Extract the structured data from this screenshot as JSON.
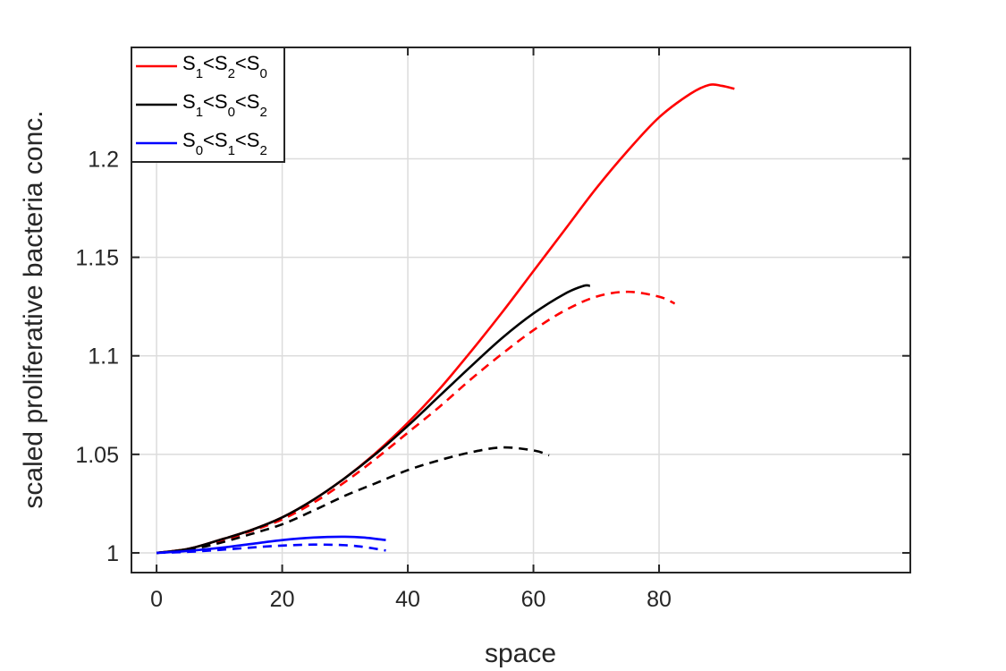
{
  "chart_data": {
    "type": "line",
    "title": "",
    "xlabel": "space",
    "ylabel": "scaled proliferative bacteria conc.",
    "xlim": [
      -4,
      120
    ],
    "ylim": [
      0.99,
      1.2565
    ],
    "xticks": [
      0,
      20,
      40,
      60,
      80
    ],
    "xtick_labels": [
      "0",
      "20",
      "40",
      "60",
      "80"
    ],
    "yticks": [
      1,
      1.05,
      1.1,
      1.15,
      1.2
    ],
    "ytick_labels": [
      "1",
      "1.05",
      "1.1",
      "1.15",
      "1.2"
    ],
    "grid": true,
    "legend_position": "top-left",
    "legend": [
      {
        "color": "#ff0000",
        "parts": [
          "S",
          "1",
          "<S",
          "2",
          "<S",
          "0"
        ],
        "label": "S1<S2<S0"
      },
      {
        "color": "#000000",
        "parts": [
          "S",
          "1",
          "<S",
          "0",
          "<S",
          "2"
        ],
        "label": "S1<S0<S2"
      },
      {
        "color": "#0000ff",
        "parts": [
          "S",
          "0",
          "<S",
          "1",
          "<S",
          "2"
        ],
        "label": "S0<S1<S2"
      }
    ],
    "series": [
      {
        "name": "S1<S2<S0 solid",
        "color": "#ff0000",
        "style": "solid",
        "x": [
          0,
          5,
          10,
          15,
          20,
          25,
          30,
          35,
          40,
          45,
          50,
          55,
          60,
          65,
          70,
          75,
          80,
          85,
          88,
          90,
          92
        ],
        "y": [
          1.0,
          1.002,
          1.0065,
          1.0115,
          1.018,
          1.027,
          1.038,
          1.051,
          1.066,
          1.083,
          1.102,
          1.122,
          1.143,
          1.164,
          1.185,
          1.204,
          1.221,
          1.233,
          1.2375,
          1.237,
          1.2355
        ]
      },
      {
        "name": "S1<S2<S0 dashed",
        "color": "#ff0000",
        "style": "dashed",
        "x": [
          0,
          5,
          10,
          15,
          20,
          25,
          30,
          35,
          40,
          45,
          50,
          55,
          60,
          65,
          70,
          75,
          80,
          82.5
        ],
        "y": [
          1.0,
          1.002,
          1.006,
          1.011,
          1.017,
          1.0255,
          1.036,
          1.048,
          1.061,
          1.074,
          1.088,
          1.101,
          1.113,
          1.123,
          1.13,
          1.1325,
          1.13,
          1.1265
        ]
      },
      {
        "name": "S1<S0<S2 solid",
        "color": "#000000",
        "style": "solid",
        "x": [
          0,
          5,
          10,
          15,
          20,
          25,
          30,
          35,
          40,
          45,
          50,
          55,
          60,
          65,
          68,
          69
        ],
        "y": [
          1.0,
          1.002,
          1.0065,
          1.0115,
          1.018,
          1.027,
          1.038,
          1.0505,
          1.0645,
          1.0795,
          1.0945,
          1.109,
          1.1215,
          1.1315,
          1.1355,
          1.1355
        ]
      },
      {
        "name": "S1<S0<S2 dashed",
        "color": "#000000",
        "style": "dashed",
        "x": [
          0,
          5,
          10,
          15,
          20,
          25,
          30,
          35,
          40,
          45,
          50,
          55,
          60,
          62.5
        ],
        "y": [
          1.0,
          1.0015,
          1.005,
          1.0095,
          1.0145,
          1.0215,
          1.029,
          1.0355,
          1.042,
          1.047,
          1.051,
          1.0535,
          1.052,
          1.0495
        ]
      },
      {
        "name": "S0<S1<S2 solid",
        "color": "#0000ff",
        "style": "solid",
        "x": [
          0,
          5,
          10,
          15,
          20,
          25,
          30,
          33,
          36.5
        ],
        "y": [
          1.0,
          1.001,
          1.0025,
          1.0045,
          1.0065,
          1.0078,
          1.0082,
          1.0078,
          1.0065
        ]
      },
      {
        "name": "S0<S1<S2 dashed",
        "color": "#0000ff",
        "style": "dashed",
        "x": [
          0,
          5,
          10,
          15,
          20,
          25,
          30,
          33,
          36.5
        ],
        "y": [
          1.0,
          1.0005,
          1.0015,
          1.0027,
          1.0037,
          1.0042,
          1.0039,
          1.003,
          1.0012
        ]
      }
    ]
  }
}
